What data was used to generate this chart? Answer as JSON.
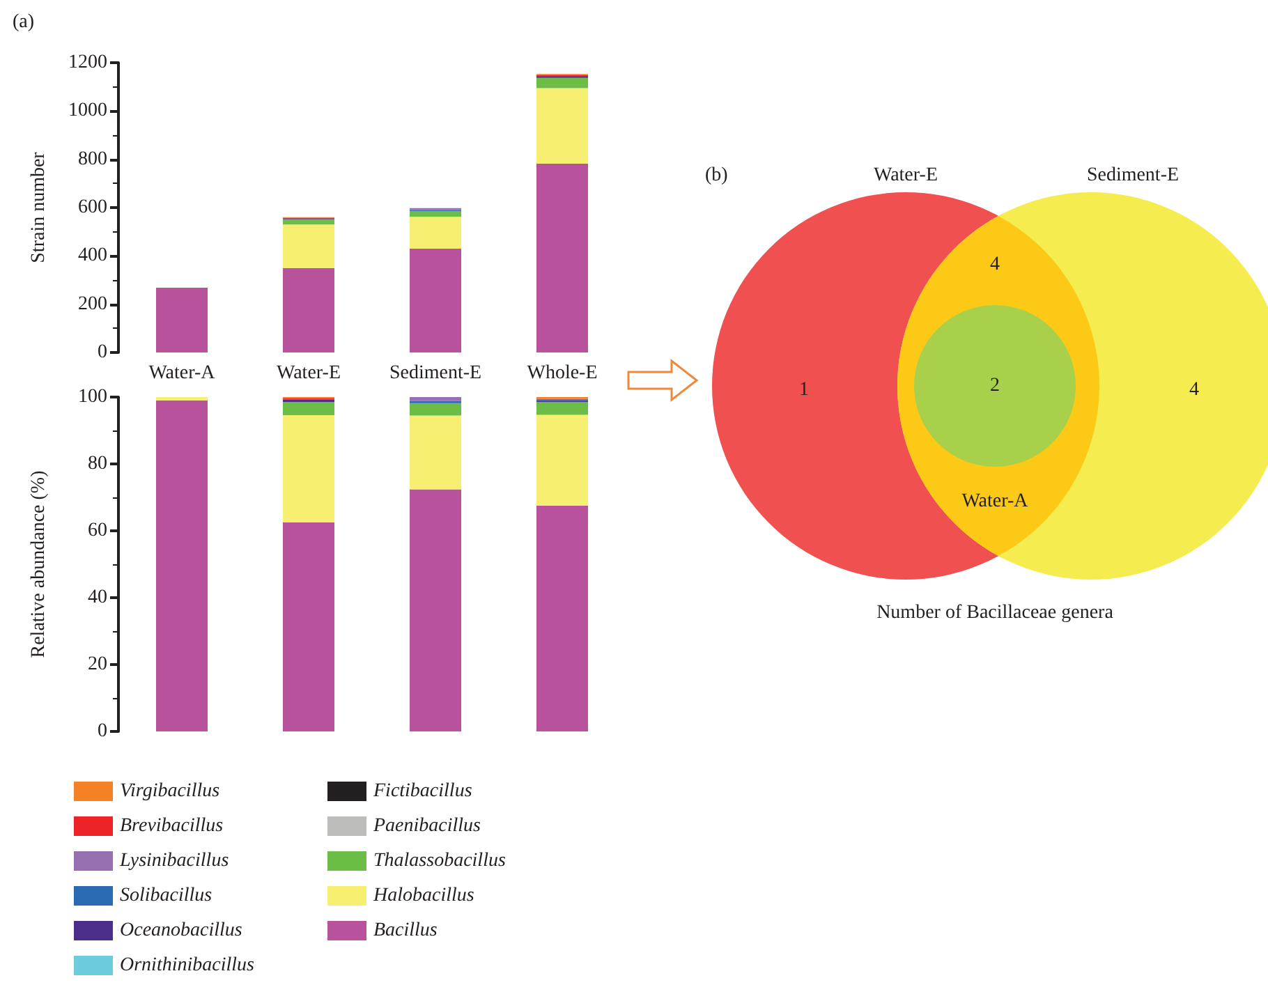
{
  "chart_data": [
    {
      "type": "bar",
      "title": "(a)",
      "ylabel": "Strain number",
      "categories": [
        "Water-A",
        "Water-E",
        "Sediment-E",
        "Whole-E"
      ],
      "stacked": true,
      "ylim": [
        0,
        1200
      ],
      "yticks": [
        0,
        200,
        400,
        600,
        800,
        1000,
        1200
      ],
      "legend": false,
      "series": [
        {
          "color": "#b9529c",
          "values": [
            268,
            350,
            430,
            782
          ]
        },
        {
          "color": "#f6ef72",
          "values": [
            0,
            180,
            132,
            313
          ]
        },
        {
          "color": "#6cbd45",
          "values": [
            0,
            22,
            23,
            42
          ]
        },
        {
          "color": "#bdbdbb",
          "values": [
            0,
            0,
            0,
            0
          ]
        },
        {
          "color": "#231f20",
          "values": [
            0,
            0,
            0,
            0
          ]
        },
        {
          "color": "#6ccbdc",
          "values": [
            0,
            0,
            0,
            0
          ]
        },
        {
          "color": "#4a2e8a",
          "values": [
            0,
            4,
            0,
            5
          ]
        },
        {
          "color": "#2a6ab3",
          "values": [
            0,
            0,
            5,
            3
          ]
        },
        {
          "color": "#9670b0",
          "values": [
            0,
            0,
            8,
            0
          ]
        },
        {
          "color": "#ee2229",
          "values": [
            0,
            2,
            0,
            3
          ]
        },
        {
          "color": "#f58025",
          "values": [
            0,
            2,
            0,
            5
          ]
        }
      ]
    },
    {
      "type": "bar",
      "ylabel": "Relative abundance (%)",
      "categories": [
        null,
        null,
        null,
        null
      ],
      "stacked": true,
      "ylim": [
        0,
        100
      ],
      "yticks": [
        0,
        20,
        40,
        60,
        80,
        100
      ],
      "tick_labels": "y",
      "legend": "bottom",
      "series": [
        {
          "name": "Bacillus",
          "color": "#b9529c",
          "values": [
            99,
            62.5,
            72.4,
            67.5
          ]
        },
        {
          "name": "Halobacillus",
          "color": "#f6ef72",
          "values": [
            1,
            32.1,
            22.1,
            27.2
          ]
        },
        {
          "name": "Thalassobacillus",
          "color": "#6cbd45",
          "values": [
            0,
            3.9,
            3.7,
            3.8
          ]
        },
        {
          "name": "Paenibacillus",
          "color": "#bdbdbb",
          "values": [
            0,
            0,
            0,
            0
          ]
        },
        {
          "name": "Fictibacillus",
          "color": "#231f20",
          "values": [
            0,
            0,
            0,
            0
          ]
        },
        {
          "name": "Ornithinibacillus",
          "color": "#6ccbdc",
          "values": [
            0,
            0,
            0,
            0
          ]
        },
        {
          "name": "Oceanobacillus",
          "color": "#4a2e8a",
          "values": [
            0,
            0.7,
            0,
            0.4
          ]
        },
        {
          "name": "Solibacillus",
          "color": "#2a6ab3",
          "values": [
            0,
            0,
            0.6,
            0.3
          ]
        },
        {
          "name": "Lysinibacillus",
          "color": "#9670b0",
          "values": [
            0,
            0,
            1.2,
            0
          ]
        },
        {
          "name": "Brevibacillus",
          "color": "#ee2229",
          "values": [
            0,
            0.4,
            0,
            0.3
          ]
        },
        {
          "name": "Virgibacillus",
          "color": "#f58025",
          "values": [
            0,
            0.4,
            0,
            0.5
          ]
        }
      ]
    },
    {
      "type": "other",
      "title": "(b)",
      "xlabel": "Number of Bacillaceae genera",
      "annotations": [
        "Water-E",
        "Sediment-E",
        "Water-A",
        "1",
        "4",
        "2",
        "4"
      ],
      "colors": [
        "#f05050",
        "#fcc917",
        "#a8d04a",
        "#f5ec50"
      ]
    }
  ]
}
